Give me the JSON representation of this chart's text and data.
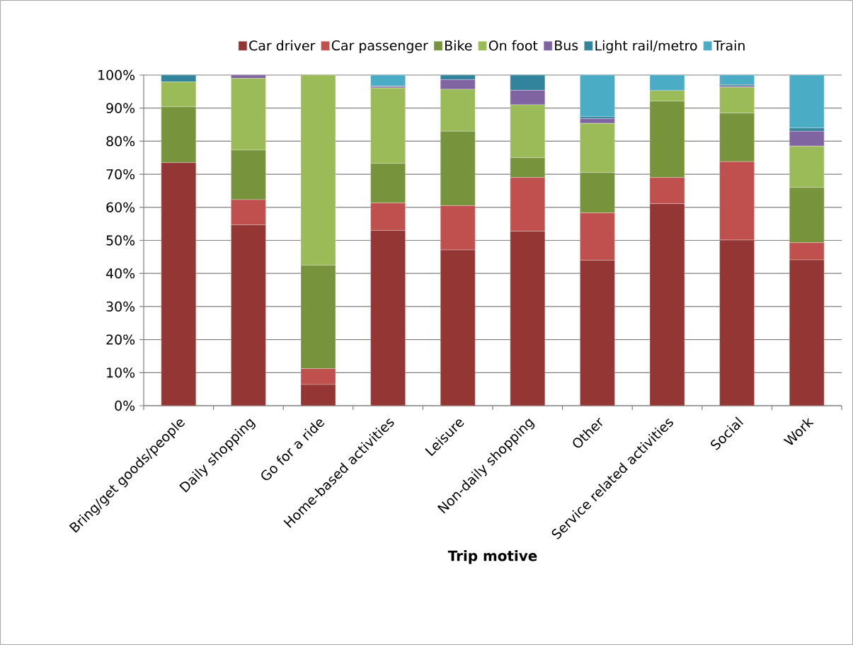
{
  "chart_data": {
    "type": "bar",
    "stacked": true,
    "xlabel": "Trip motive",
    "categories": [
      "Bring/get goods/people",
      "Daily shopping",
      "Go for a ride",
      "Home-based activities",
      "Leisure",
      "Non-daily shopping",
      "Other",
      "Service related activities",
      "Social",
      "Work"
    ],
    "series": [
      {
        "name": "Car driver",
        "color": "#943634",
        "values": [
          73.5,
          54.7,
          6.4,
          53.0,
          47.1,
          52.8,
          44.0,
          61.1,
          50.1,
          44.1
        ]
      },
      {
        "name": "Car passenger",
        "color": "#c0504d",
        "values": [
          0,
          7.6,
          4.8,
          8.3,
          13.4,
          16.2,
          14.3,
          7.9,
          23.7,
          5.2
        ]
      },
      {
        "name": "Bike",
        "color": "#77933c",
        "values": [
          16.9,
          15.0,
          31.3,
          12.0,
          22.5,
          6.0,
          12.2,
          23.1,
          14.7,
          16.7
        ]
      },
      {
        "name": "On foot",
        "color": "#9bbb59",
        "values": [
          7.5,
          21.7,
          57.5,
          22.8,
          12.7,
          16.0,
          14.9,
          3.2,
          7.8,
          12.5
        ]
      },
      {
        "name": "Bus",
        "color": "#8064a2",
        "values": [
          0,
          1.0,
          0,
          0.4,
          2.9,
          4.4,
          1.4,
          0,
          0.4,
          4.5
        ]
      },
      {
        "name": "Light rail/metro",
        "color": "#31849b",
        "values": [
          2.1,
          0,
          0,
          0.2,
          1.4,
          4.6,
          0.6,
          0,
          0.4,
          1.0
        ]
      },
      {
        "name": "Train",
        "color": "#4bacc6",
        "values": [
          0,
          0,
          0,
          3.3,
          0,
          0,
          12.6,
          4.7,
          2.9,
          16.0
        ]
      }
    ],
    "ylim": [
      0,
      100
    ],
    "yticks": [
      {
        "value": 0,
        "label": "0%"
      },
      {
        "value": 10,
        "label": "10%"
      },
      {
        "value": 20,
        "label": "20%"
      },
      {
        "value": 30,
        "label": "30%"
      },
      {
        "value": 40,
        "label": "40%"
      },
      {
        "value": 50,
        "label": "50%"
      },
      {
        "value": 60,
        "label": "60%"
      },
      {
        "value": 70,
        "label": "70%"
      },
      {
        "value": 80,
        "label": "80%"
      },
      {
        "value": 90,
        "label": "90%"
      },
      {
        "value": 100,
        "label": "100%"
      }
    ],
    "grid": "y",
    "legend": "top"
  }
}
